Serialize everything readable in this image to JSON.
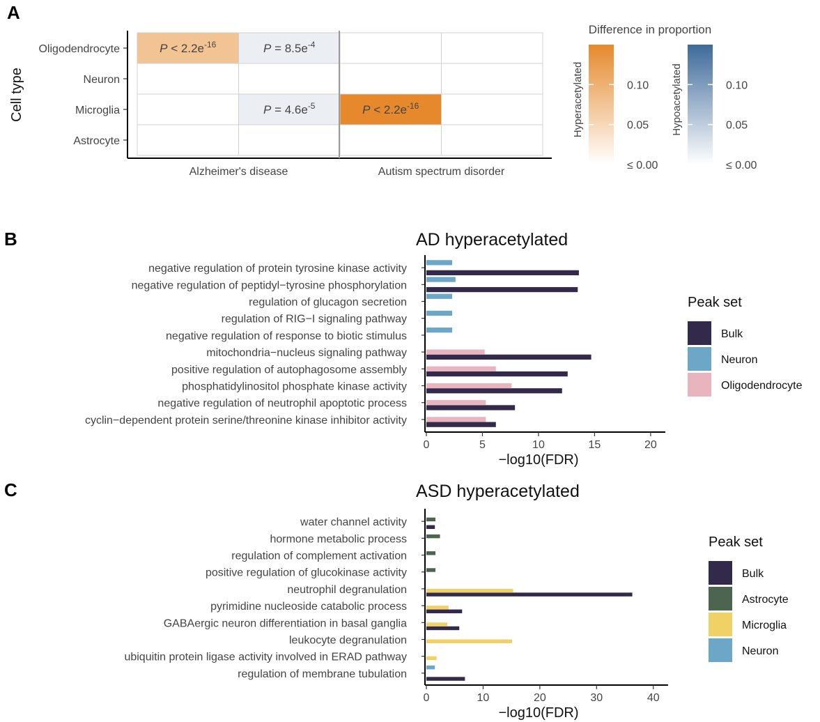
{
  "panels": {
    "A": {
      "label": "A"
    },
    "B": {
      "label": "B"
    },
    "C": {
      "label": "C"
    }
  },
  "colors": {
    "hyper": "#E5892C",
    "hyper_mid": "#F2C494",
    "hypo": "#3E6A9A",
    "hypo_light": "#EBEEF3",
    "bulk": "#33294A",
    "neuron": "#6DA7C8",
    "oligodendrocyte": "#E8B4BE",
    "astrocyte": "#4D6450",
    "microglia": "#F0D165"
  },
  "chart_data": [
    {
      "type": "heatmap",
      "panel": "A",
      "ylabel": "Cell type",
      "rows": [
        "Oligodendrocyte",
        "Neuron",
        "Microglia",
        "Astrocyte"
      ],
      "groups": [
        "Alzheimer's disease",
        "Autism spectrum disorder"
      ],
      "columns": [
        {
          "group": "Alzheimer's disease",
          "direction": "hyper"
        },
        {
          "group": "Alzheimer's disease",
          "direction": "hypo"
        },
        {
          "group": "Autism spectrum disorder",
          "direction": "hyper"
        },
        {
          "group": "Autism spectrum disorder",
          "direction": "hypo"
        }
      ],
      "cells": [
        {
          "row": 0,
          "col": 0,
          "fill": "hyper_mid",
          "p_prefix": "P",
          "p_mid": " < 2.2e",
          "p_exp": "-16"
        },
        {
          "row": 0,
          "col": 1,
          "fill": "hypo_light",
          "p_prefix": "P",
          "p_mid": " = 8.5e",
          "p_exp": "-4"
        },
        {
          "row": 2,
          "col": 1,
          "fill": "hypo_light",
          "p_prefix": "P",
          "p_mid": " = 4.6e",
          "p_exp": "-5"
        },
        {
          "row": 2,
          "col": 2,
          "fill": "hyper",
          "p_prefix": "P",
          "p_mid": " < 2.2e",
          "p_exp": "-16"
        }
      ],
      "legend": {
        "title": "Difference in proportion",
        "bars": [
          {
            "name": "Hyperacetylated",
            "color": "hyper"
          },
          {
            "name": "Hypoacetylated",
            "color": "hypo"
          }
        ],
        "ticks": [
          {
            "value": 0.1,
            "label": "0.10"
          },
          {
            "value": 0.05,
            "label": "0.05"
          },
          {
            "value": 0.0,
            "label": "≤ 0.00"
          }
        ],
        "range": [
          0,
          0.15
        ]
      }
    },
    {
      "type": "bar",
      "panel": "B",
      "orientation": "horizontal",
      "title": "AD hyperacetylated",
      "xlabel": "−log10(FDR)",
      "xlim": [
        0,
        21
      ],
      "xticks": [
        0,
        5,
        10,
        15,
        20
      ],
      "categories": [
        "negative regulation of protein tyrosine kinase activity",
        "negative regulation of peptidyl−tyrosine phosphorylation",
        "regulation of glucagon secretion",
        "regulation of RIG−I signaling pathway",
        "negative regulation of response to biotic stimulus",
        "mitochondria−nucleus signaling pathway",
        "positive regulation of autophagosome assembly",
        "phosphatidylinositol phosphate kinase activity",
        "negative regulation of neutrophil apoptotic process",
        "cyclin−dependent protein serine/threonine kinase inhibitor activity"
      ],
      "slots": [
        "neuron",
        "oligodendrocyte",
        "bulk"
      ],
      "series": [
        {
          "name": "Bulk",
          "color": "bulk",
          "slot": 2,
          "values": [
            13.6,
            13.5,
            null,
            null,
            null,
            14.7,
            12.6,
            12.1,
            7.9,
            6.2
          ]
        },
        {
          "name": "Neuron",
          "color": "neuron",
          "slot": 0,
          "values": [
            2.3,
            2.6,
            2.3,
            2.3,
            2.3,
            null,
            null,
            null,
            null,
            null
          ]
        },
        {
          "name": "Oligodendrocyte",
          "color": "oligodendrocyte",
          "slot": 1,
          "values": [
            null,
            null,
            null,
            null,
            null,
            5.2,
            6.2,
            7.6,
            5.3,
            5.3
          ]
        }
      ],
      "legend": {
        "title": "Peak set",
        "items": [
          {
            "name": "Bulk",
            "color": "bulk"
          },
          {
            "name": "Neuron",
            "color": "neuron"
          },
          {
            "name": "Oligodendrocyte",
            "color": "oligodendrocyte"
          }
        ]
      }
    },
    {
      "type": "bar",
      "panel": "C",
      "orientation": "horizontal",
      "title": "ASD hyperacetylated",
      "xlabel": "−log10(FDR)",
      "xlim": [
        0,
        42
      ],
      "xticks": [
        0,
        10,
        20,
        30,
        40
      ],
      "categories": [
        "water channel activity",
        "hormone metabolic process",
        "regulation of complement activation",
        "positive regulation of glucokinase activity",
        "neutrophil degranulation",
        "pyrimidine nucleoside catabolic process",
        "GABAergic neuron differentiation in basal ganglia",
        "leukocyte degranulation",
        "ubiquitin protein ligase activity involved in ERAD pathway",
        "regulation of membrane tubulation"
      ],
      "slots": [
        "neuron",
        "astrocyte",
        "microglia",
        "bulk"
      ],
      "series": [
        {
          "name": "Bulk",
          "color": "bulk",
          "slot": 3,
          "values": [
            1.5,
            null,
            null,
            null,
            36.3,
            6.3,
            5.8,
            null,
            null,
            6.8
          ]
        },
        {
          "name": "Astrocyte",
          "color": "astrocyte",
          "slot": 1,
          "values": [
            1.6,
            2.4,
            1.6,
            1.6,
            null,
            null,
            null,
            null,
            null,
            null
          ]
        },
        {
          "name": "Microglia",
          "color": "microglia",
          "slot": 2,
          "values": [
            null,
            null,
            null,
            null,
            15.3,
            3.9,
            3.7,
            15.1,
            1.8,
            null
          ]
        },
        {
          "name": "Neuron",
          "color": "neuron",
          "slot": 0,
          "values": [
            null,
            null,
            null,
            null,
            null,
            null,
            null,
            null,
            null,
            1.5
          ]
        }
      ],
      "legend": {
        "title": "Peak set",
        "items": [
          {
            "name": "Bulk",
            "color": "bulk"
          },
          {
            "name": "Astrocyte",
            "color": "astrocyte"
          },
          {
            "name": "Microglia",
            "color": "microglia"
          },
          {
            "name": "Neuron",
            "color": "neuron"
          }
        ]
      }
    }
  ]
}
